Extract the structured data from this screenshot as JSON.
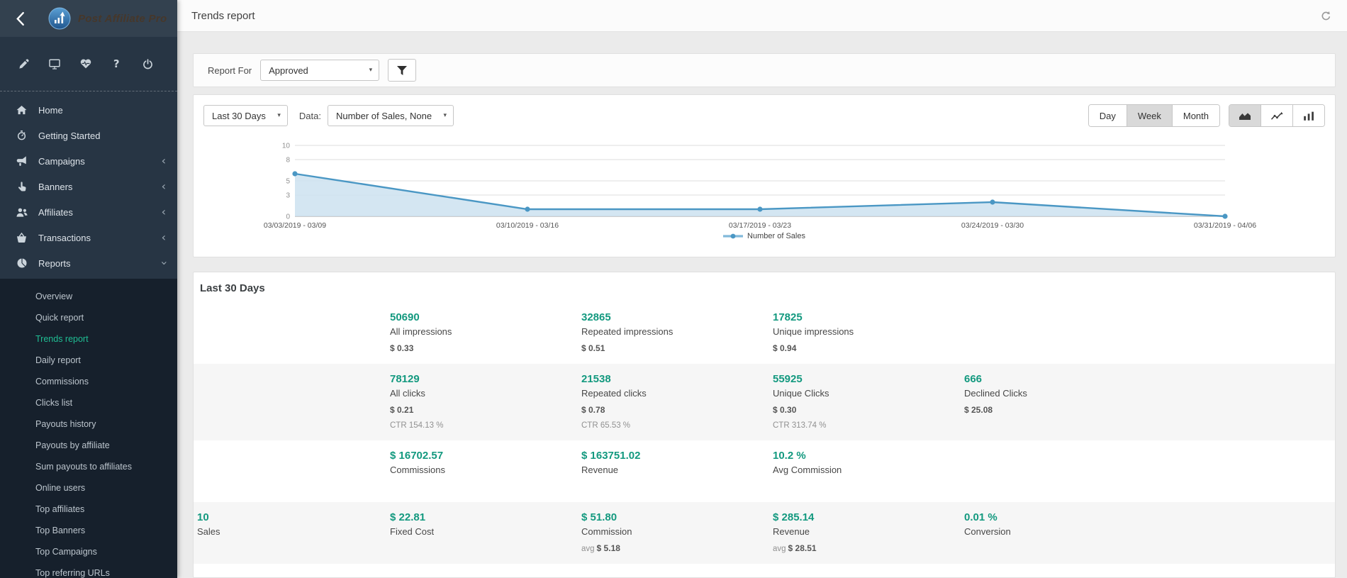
{
  "brand": {
    "name": "Post Affiliate Pro"
  },
  "header": {
    "title": "Trends report"
  },
  "colors": {
    "accent_dark": "#13997f",
    "accent_light": "#1fbe94",
    "sidebar_bg": "#273544",
    "submenu_bg": "#16202c",
    "chart_line": "#4a97c4",
    "chart_fill": "#cde2f0"
  },
  "sidebar": {
    "top_icons": [
      {
        "name": "pencil"
      },
      {
        "name": "monitor"
      },
      {
        "name": "heartbeat"
      },
      {
        "name": "help"
      },
      {
        "name": "power"
      }
    ],
    "items": [
      {
        "label": "Home",
        "icon": "home",
        "chevron": ""
      },
      {
        "label": "Getting Started",
        "icon": "stopwatch",
        "chevron": ""
      },
      {
        "label": "Campaigns",
        "icon": "megaphone",
        "chevron": "left"
      },
      {
        "label": "Banners",
        "icon": "hand-pointer",
        "chevron": "left"
      },
      {
        "label": "Affiliates",
        "icon": "users",
        "chevron": "left"
      },
      {
        "label": "Transactions",
        "icon": "basket",
        "chevron": "left"
      },
      {
        "label": "Reports",
        "icon": "pie-chart",
        "chevron": "down"
      }
    ],
    "reports_submenu": {
      "active": "Trends report",
      "items": [
        "Overview",
        "Quick report",
        "Trends report",
        "Daily report",
        "Commissions",
        "Clicks list",
        "Payouts history",
        "Payouts by affiliate",
        "Sum payouts to affiliates",
        "Online users",
        "Top affiliates",
        "Top Banners",
        "Top Campaigns",
        "Top referring URLs"
      ]
    }
  },
  "toolbar": {
    "report_for_label": "Report For",
    "report_for_value": "Approved"
  },
  "controls": {
    "range_value": "Last 30 Days",
    "data_label": "Data:",
    "data_value": "Number of Sales, None",
    "period_buttons": [
      "Day",
      "Week",
      "Month"
    ],
    "period_active": "Week",
    "chart_type_buttons": [
      "area-chart",
      "line-chart",
      "bar-chart"
    ],
    "chart_type_active": "area-chart"
  },
  "chart_data": {
    "type": "area",
    "title": "",
    "x": [
      "03/03/2019 - 03/09",
      "03/10/2019 - 03/16",
      "03/17/2019 - 03/23",
      "03/24/2019 - 03/30",
      "03/31/2019 - 04/06"
    ],
    "series": [
      {
        "name": "Number of Sales",
        "values": [
          6,
          1,
          1,
          2,
          0
        ]
      }
    ],
    "ylim": [
      0,
      10
    ],
    "yticks": [
      0,
      3,
      5,
      8,
      10
    ],
    "grid": true,
    "legend_position": "bottom"
  },
  "stats": {
    "title": "Last 30 Days",
    "rows": [
      {
        "shaded": false,
        "cells": [
          {
            "col": 1,
            "value": "50690",
            "label": "All impressions",
            "sub": "$ 0.33"
          },
          {
            "col": 2,
            "value": "32865",
            "label": "Repeated impressions",
            "sub": "$ 0.51"
          },
          {
            "col": 3,
            "value": "17825",
            "label": "Unique impressions",
            "sub": "$ 0.94"
          }
        ]
      },
      {
        "shaded": true,
        "cells": [
          {
            "col": 1,
            "value": "78129",
            "label": "All clicks",
            "sub": "$ 0.21",
            "ctr": "CTR 154.13 %"
          },
          {
            "col": 2,
            "value": "21538",
            "label": "Repeated clicks",
            "sub": "$ 0.78",
            "ctr": "CTR 65.53 %"
          },
          {
            "col": 3,
            "value": "55925",
            "label": "Unique Clicks",
            "sub": "$ 0.30",
            "ctr": "CTR 313.74 %"
          },
          {
            "col": 4,
            "value": "666",
            "label": "Declined Clicks",
            "sub": "$ 25.08"
          }
        ]
      },
      {
        "shaded": false,
        "cells": [
          {
            "col": 1,
            "value": "$ 16702.57",
            "label": "Commissions"
          },
          {
            "col": 2,
            "value": "$ 163751.02",
            "label": "Revenue"
          },
          {
            "col": 3,
            "value": "10.2 %",
            "label": "Avg Commission"
          }
        ]
      },
      {
        "shaded": true,
        "cells": [
          {
            "col": 0,
            "value": "10",
            "label": "Sales"
          },
          {
            "col": 1,
            "value": "$ 22.81",
            "label": "Fixed Cost"
          },
          {
            "col": 2,
            "value": "$ 51.80",
            "label": "Commission",
            "avg_label": "avg",
            "avg_value": "$ 5.18"
          },
          {
            "col": 3,
            "value": "$ 285.14",
            "label": "Revenue",
            "avg_label": "avg",
            "avg_value": "$ 28.51"
          },
          {
            "col": 4,
            "value": "0.01 %",
            "label": "Conversion"
          }
        ]
      }
    ]
  }
}
